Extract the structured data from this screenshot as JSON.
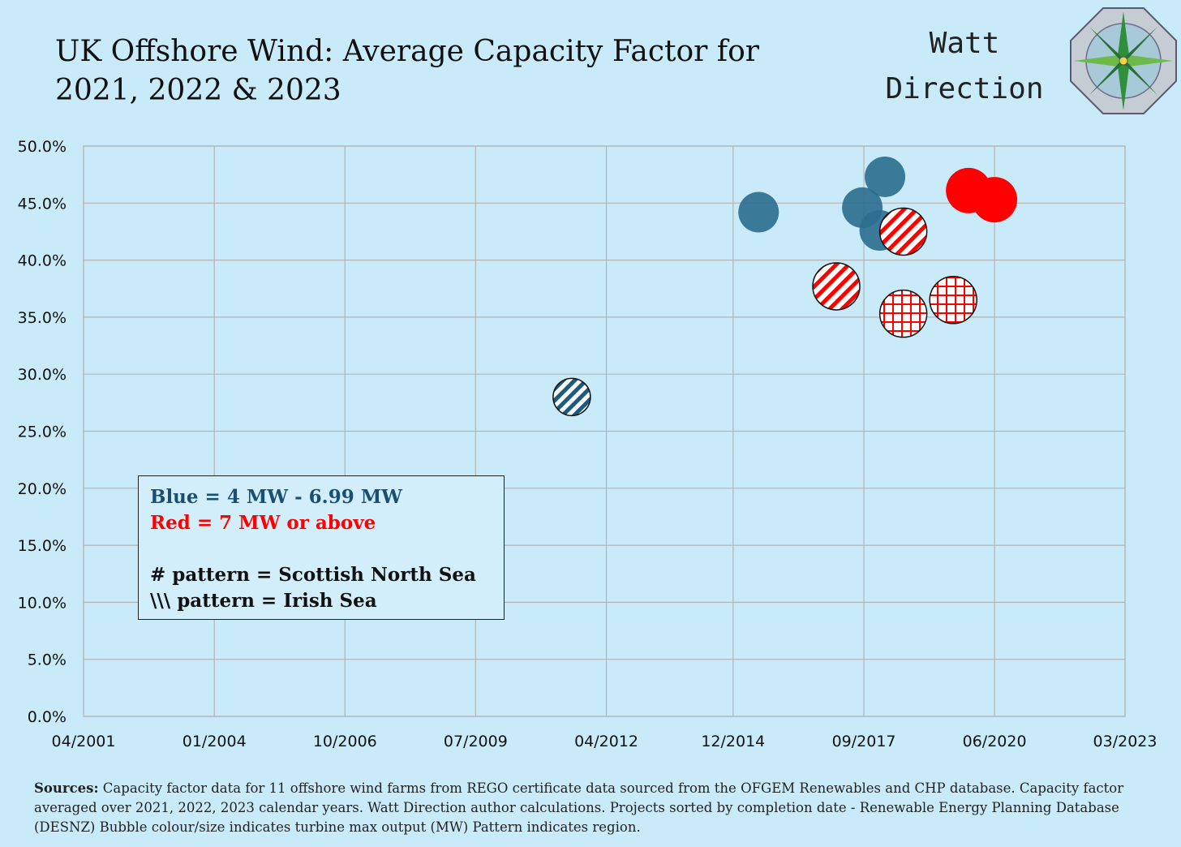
{
  "title": "UK Offshore Wind: Average Capacity Factor for 2021, 2022 & 2023",
  "brand": {
    "line1": "Watt",
    "line2": "Direction"
  },
  "legend": {
    "blue": "Blue = 4 MW -  6.99 MW",
    "red": "Red =  7 MW or above",
    "hash": "# pattern = Scottish North Sea",
    "backslash": "\\\\\\ pattern = Irish Sea"
  },
  "sources": {
    "label": "Sources:",
    "text": " Capacity factor data for 11 offshore wind farms from REGO certificate data sourced from the OFGEM Renewables and CHP database. Capacity factor  averaged over 2021, 2022, 2023 calendar years. Watt Direction author calculations. Projects sorted by completion date - Renewable Energy Planning Database (DESNZ) Bubble colour/size indicates turbine max output (MW) Pattern indicates region."
  },
  "colors": {
    "blue": "#2e6f8e",
    "red": "#ff0000",
    "background": "#c9ebf9",
    "grid": "#b4b4b4"
  },
  "chart_data": {
    "type": "scatter",
    "title": "UK Offshore Wind: Average Capacity Factor for 2021, 2022 & 2023",
    "xlabel": "",
    "ylabel": "",
    "x_is_date": true,
    "xlim": [
      "2001-04-01",
      "2023-03-01"
    ],
    "ylim": [
      0,
      50
    ],
    "x_ticks": [
      "04/2001",
      "01/2004",
      "10/2006",
      "07/2009",
      "04/2012",
      "12/2014",
      "09/2017",
      "06/2020",
      "03/2023"
    ],
    "x_tick_dates": [
      "2001-04-01",
      "2004-01-01",
      "2006-10-01",
      "2009-07-01",
      "2012-04-01",
      "2014-12-01",
      "2017-09-01",
      "2020-06-01",
      "2023-03-01"
    ],
    "y_ticks": [
      "0.0%",
      "5.0%",
      "10.0%",
      "15.0%",
      "20.0%",
      "25.0%",
      "30.0%",
      "35.0%",
      "40.0%",
      "45.0%",
      "50.0%"
    ],
    "grid": true,
    "points": [
      {
        "x": "2011-07-10",
        "y": 28.0,
        "color": "blue",
        "pattern": "irish"
      },
      {
        "x": "2015-06-15",
        "y": 44.2,
        "color": "blue",
        "pattern": "none"
      },
      {
        "x": "2017-08-20",
        "y": 44.6,
        "color": "blue",
        "pattern": "none"
      },
      {
        "x": "2018-01-01",
        "y": 42.6,
        "color": "blue",
        "pattern": "none"
      },
      {
        "x": "2018-02-10",
        "y": 47.3,
        "color": "blue",
        "pattern": "none"
      },
      {
        "x": "2017-02-01",
        "y": 37.7,
        "color": "red",
        "pattern": "irish"
      },
      {
        "x": "2018-07-01",
        "y": 42.5,
        "color": "red",
        "pattern": "irish"
      },
      {
        "x": "2018-07-01",
        "y": 35.3,
        "color": "red",
        "pattern": "scottish"
      },
      {
        "x": "2019-07-20",
        "y": 36.5,
        "color": "red",
        "pattern": "scottish"
      },
      {
        "x": "2019-11-15",
        "y": 46.1,
        "color": "red",
        "pattern": "none"
      },
      {
        "x": "2020-06-01",
        "y": 45.3,
        "color": "red",
        "pattern": "none"
      }
    ]
  }
}
